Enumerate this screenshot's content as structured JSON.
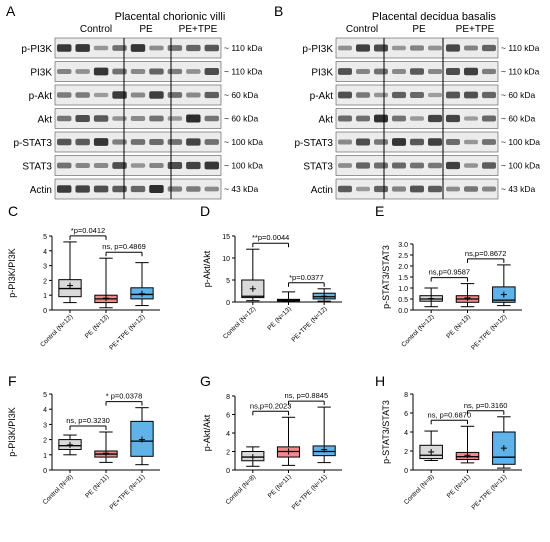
{
  "blots": {
    "A": {
      "letter": "A",
      "title": "Placental chorionic villi",
      "groups": [
        "Control",
        "PE",
        "PE+TPE"
      ],
      "rows": [
        {
          "label": "p-PI3K",
          "kda": "~ 110 kDa"
        },
        {
          "label": "PI3K",
          "kda": "~ 110 kDa"
        },
        {
          "label": "p-Akt",
          "kda": "~ 60 kDa"
        },
        {
          "label": "Akt",
          "kda": "~ 60 kDa"
        },
        {
          "label": "p-STAT3",
          "kda": "~ 100 kDa"
        },
        {
          "label": "STAT3",
          "kda": "~ 100 kDa"
        },
        {
          "label": "Actin",
          "kda": "~ 43 kDa"
        }
      ]
    },
    "B": {
      "letter": "B",
      "title": "Placental decidua basalis",
      "groups": [
        "Control",
        "PE",
        "PE+TPE"
      ],
      "rows": [
        {
          "label": "p-PI3K",
          "kda": "~ 110 kDa"
        },
        {
          "label": "PI3K",
          "kda": "~ 110 kDa"
        },
        {
          "label": "p-Akt",
          "kda": "~ 60 kDa"
        },
        {
          "label": "Akt",
          "kda": "~ 60 kDa"
        },
        {
          "label": "p-STAT3",
          "kda": "~ 100 kDa"
        },
        {
          "label": "STAT3",
          "kda": "~ 100 kDa"
        },
        {
          "label": "Actin",
          "kda": "~ 43 kDa"
        }
      ]
    }
  },
  "colors": {
    "control": "#d9d9d9",
    "pe": "#f08a8a",
    "tpe": "#5fb3e8",
    "blot_bg": "#ececec",
    "band": "#222222"
  },
  "chart_data": [
    {
      "panel": "C",
      "type": "box",
      "ylabel": "p-PI3K/PI3K",
      "ylim": [
        0,
        5
      ],
      "yticks": [
        0,
        1,
        2,
        3,
        4,
        5
      ],
      "categories": [
        "Control (N=12)",
        "PE (N=13)",
        "PE+TPE (N=12)"
      ],
      "boxes": [
        {
          "min": 0.5,
          "q1": 0.9,
          "median": 1.45,
          "q3": 2.05,
          "max": 4.6,
          "mean": 1.65
        },
        {
          "min": 0.15,
          "q1": 0.5,
          "median": 0.75,
          "q3": 1.0,
          "max": 3.5,
          "mean": 0.8
        },
        {
          "min": 0.3,
          "q1": 0.75,
          "median": 1.05,
          "q3": 1.5,
          "max": 3.2,
          "mean": 1.1
        }
      ],
      "annotations": [
        {
          "text": "*p=0.0412",
          "from": 0,
          "to": 1
        },
        {
          "text": "ns, p=0.4869",
          "from": 1,
          "to": 2
        }
      ]
    },
    {
      "panel": "D",
      "type": "box",
      "ylabel": "p-Akt/Akt",
      "ylim": [
        0,
        15
      ],
      "yticks": [
        0,
        5,
        10,
        15
      ],
      "categories": [
        "Control (N=12)",
        "PE (N=13)",
        "PE+TPE (N=12)"
      ],
      "boxes": [
        {
          "min": 0.3,
          "q1": 1.0,
          "median": 1.3,
          "q3": 5.0,
          "max": 12.0,
          "mean": 3.0
        },
        {
          "min": 0.1,
          "q1": 0.25,
          "median": 0.4,
          "q3": 0.6,
          "max": 2.3,
          "mean": 0.5
        },
        {
          "min": 0.2,
          "q1": 0.7,
          "median": 1.2,
          "q3": 2.0,
          "max": 3.0,
          "mean": 1.3
        }
      ],
      "annotations": [
        {
          "text": "**p=0.0044",
          "from": 0,
          "to": 1
        },
        {
          "text": "*p=0.0377",
          "from": 1,
          "to": 2
        }
      ]
    },
    {
      "panel": "E",
      "type": "box",
      "ylabel": "p-STAT3/STAT3",
      "ylim": [
        0,
        3
      ],
      "yticks": [
        0.0,
        0.5,
        1.0,
        1.5,
        2.0,
        2.5,
        3.0
      ],
      "categories": [
        "Control (N=12)",
        "PE (N=13)",
        "PE+TPE (N=12)"
      ],
      "boxes": [
        {
          "min": 0.15,
          "q1": 0.4,
          "median": 0.5,
          "q3": 0.65,
          "max": 1.0,
          "mean": 0.52
        },
        {
          "min": 0.15,
          "q1": 0.35,
          "median": 0.5,
          "q3": 0.65,
          "max": 1.2,
          "mean": 0.55
        },
        {
          "min": 0.2,
          "q1": 0.35,
          "median": 0.45,
          "q3": 1.05,
          "max": 2.05,
          "mean": 0.7
        }
      ],
      "annotations": [
        {
          "text": "ns,p=0.9587",
          "from": 0,
          "to": 1
        },
        {
          "text": "ns,p=0.8672",
          "from": 1,
          "to": 2
        }
      ]
    },
    {
      "panel": "F",
      "type": "box",
      "ylabel": "p-PI3K/PI3K",
      "ylim": [
        0,
        5
      ],
      "yticks": [
        0,
        1,
        2,
        3,
        4,
        5
      ],
      "categories": [
        "Control (N=8)",
        "PE (N=11)",
        "PE+TPE (N=11)"
      ],
      "boxes": [
        {
          "min": 1.0,
          "q1": 1.35,
          "median": 1.6,
          "q3": 2.0,
          "max": 2.3,
          "mean": 1.65
        },
        {
          "min": 0.5,
          "q1": 0.85,
          "median": 1.05,
          "q3": 1.25,
          "max": 2.5,
          "mean": 1.1
        },
        {
          "min": 0.35,
          "q1": 0.9,
          "median": 1.9,
          "q3": 3.2,
          "max": 4.1,
          "mean": 2.0
        }
      ],
      "annotations": [
        {
          "text": "ns, p=0.3230",
          "from": 0,
          "to": 1
        },
        {
          "text": "* p=0.0378",
          "from": 1,
          "to": 2
        }
      ]
    },
    {
      "panel": "G",
      "type": "box",
      "ylabel": "p-Akt/Akt",
      "ylim": [
        0,
        8
      ],
      "yticks": [
        0,
        2,
        4,
        6,
        8
      ],
      "categories": [
        "Control (N=8)",
        "PE (N=11)",
        "PE+TPE (N=11)"
      ],
      "boxes": [
        {
          "min": 0.4,
          "q1": 1.0,
          "median": 1.4,
          "q3": 2.0,
          "max": 2.5,
          "mean": 1.4
        },
        {
          "min": 0.5,
          "q1": 1.4,
          "median": 2.0,
          "q3": 2.5,
          "max": 5.7,
          "mean": 2.0
        },
        {
          "min": 0.8,
          "q1": 1.55,
          "median": 2.0,
          "q3": 2.6,
          "max": 6.8,
          "mean": 2.2
        }
      ],
      "annotations": [
        {
          "text": "ns,p=0.2023",
          "from": 0,
          "to": 1
        },
        {
          "text": "ns, p=0.8845",
          "from": 1,
          "to": 2
        }
      ]
    },
    {
      "panel": "H",
      "type": "box",
      "ylabel": "p-STAT3/STAT3",
      "ylim": [
        0,
        8
      ],
      "yticks": [
        0,
        2,
        4,
        6,
        8
      ],
      "categories": [
        "Control (N=8)",
        "PE (N=11)",
        "PE+TPE (N=11)"
      ],
      "boxes": [
        {
          "min": 1.0,
          "q1": 1.2,
          "median": 1.55,
          "q3": 2.6,
          "max": 4.1,
          "mean": 1.9
        },
        {
          "min": 0.75,
          "q1": 1.1,
          "median": 1.4,
          "q3": 1.85,
          "max": 4.6,
          "mean": 1.55
        },
        {
          "min": 0.2,
          "q1": 0.6,
          "median": 1.35,
          "q3": 4.0,
          "max": 5.6,
          "mean": 2.3
        }
      ],
      "annotations": [
        {
          "text": "ns, p=0.6870",
          "from": 0,
          "to": 1
        },
        {
          "text": "ns, p=0.3160",
          "from": 1,
          "to": 2
        }
      ]
    }
  ]
}
